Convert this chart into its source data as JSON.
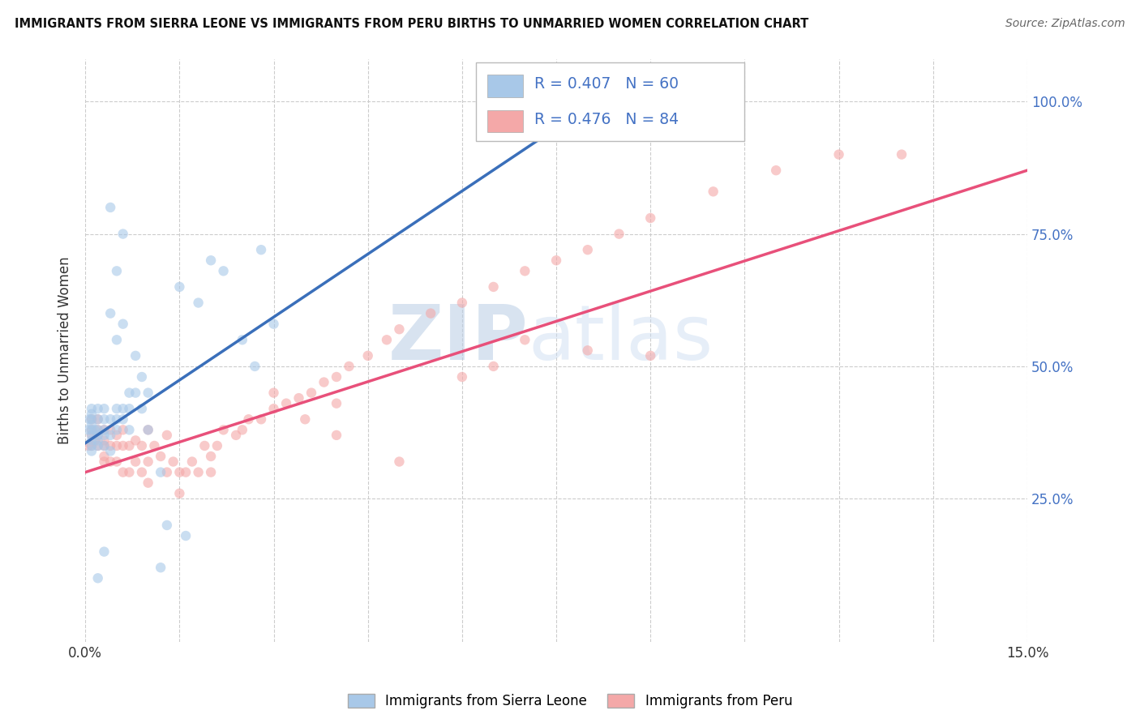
{
  "title": "IMMIGRANTS FROM SIERRA LEONE VS IMMIGRANTS FROM PERU BIRTHS TO UNMARRIED WOMEN CORRELATION CHART",
  "source": "Source: ZipAtlas.com",
  "ylabel": "Births to Unmarried Women",
  "xlim": [
    0.0,
    0.15
  ],
  "ylim": [
    -0.02,
    1.08
  ],
  "color_sierra_leone": "#a8c8e8",
  "color_peru": "#f4a8a8",
  "color_trend_sierra_leone": "#3a6fba",
  "color_trend_peru": "#e8507a",
  "watermark_zip": "ZIP",
  "watermark_atlas": "atlas",
  "background_color": "#ffffff",
  "grid_color": "#cccccc",
  "legend_R_color": "#4472c4",
  "legend_N_color": "#4472c4",
  "ytick_color": "#4472c4",
  "sl_x": [
    0.0005,
    0.0007,
    0.001,
    0.001,
    0.001,
    0.001,
    0.001,
    0.001,
    0.001,
    0.001,
    0.001,
    0.0015,
    0.002,
    0.002,
    0.002,
    0.002,
    0.002,
    0.002,
    0.003,
    0.003,
    0.003,
    0.003,
    0.003,
    0.004,
    0.004,
    0.004,
    0.004,
    0.005,
    0.005,
    0.005,
    0.005,
    0.006,
    0.006,
    0.006,
    0.007,
    0.007,
    0.007,
    0.008,
    0.008,
    0.009,
    0.009,
    0.01,
    0.01,
    0.012,
    0.012,
    0.013,
    0.015,
    0.016,
    0.018,
    0.02,
    0.022,
    0.025,
    0.027,
    0.028,
    0.03,
    0.004,
    0.005,
    0.006,
    0.003,
    0.002
  ],
  "sl_y": [
    0.38,
    0.4,
    0.36,
    0.38,
    0.4,
    0.41,
    0.42,
    0.35,
    0.37,
    0.39,
    0.34,
    0.38,
    0.38,
    0.4,
    0.42,
    0.36,
    0.37,
    0.35,
    0.38,
    0.4,
    0.42,
    0.35,
    0.37,
    0.34,
    0.37,
    0.4,
    0.6,
    0.38,
    0.4,
    0.42,
    0.55,
    0.4,
    0.42,
    0.58,
    0.38,
    0.42,
    0.45,
    0.45,
    0.52,
    0.42,
    0.48,
    0.38,
    0.45,
    0.3,
    0.12,
    0.2,
    0.65,
    0.18,
    0.62,
    0.7,
    0.68,
    0.55,
    0.5,
    0.72,
    0.58,
    0.8,
    0.68,
    0.75,
    0.15,
    0.1
  ],
  "peru_x": [
    0.0005,
    0.001,
    0.001,
    0.001,
    0.001,
    0.0015,
    0.002,
    0.002,
    0.002,
    0.002,
    0.003,
    0.003,
    0.003,
    0.003,
    0.003,
    0.004,
    0.004,
    0.004,
    0.005,
    0.005,
    0.005,
    0.006,
    0.006,
    0.006,
    0.007,
    0.007,
    0.008,
    0.008,
    0.009,
    0.009,
    0.01,
    0.01,
    0.011,
    0.012,
    0.013,
    0.013,
    0.014,
    0.015,
    0.016,
    0.017,
    0.018,
    0.019,
    0.02,
    0.021,
    0.022,
    0.024,
    0.026,
    0.028,
    0.03,
    0.032,
    0.034,
    0.036,
    0.038,
    0.04,
    0.042,
    0.045,
    0.048,
    0.05,
    0.055,
    0.06,
    0.065,
    0.07,
    0.075,
    0.08,
    0.085,
    0.09,
    0.1,
    0.11,
    0.12,
    0.13,
    0.03,
    0.025,
    0.02,
    0.015,
    0.01,
    0.035,
    0.04,
    0.05,
    0.06,
    0.07,
    0.08,
    0.09,
    0.04,
    0.065
  ],
  "peru_y": [
    0.35,
    0.35,
    0.37,
    0.38,
    0.4,
    0.36,
    0.35,
    0.37,
    0.38,
    0.4,
    0.33,
    0.35,
    0.36,
    0.38,
    0.32,
    0.32,
    0.35,
    0.38,
    0.32,
    0.35,
    0.37,
    0.3,
    0.35,
    0.38,
    0.3,
    0.35,
    0.32,
    0.36,
    0.3,
    0.35,
    0.32,
    0.38,
    0.35,
    0.33,
    0.3,
    0.37,
    0.32,
    0.3,
    0.3,
    0.32,
    0.3,
    0.35,
    0.33,
    0.35,
    0.38,
    0.37,
    0.4,
    0.4,
    0.42,
    0.43,
    0.44,
    0.45,
    0.47,
    0.48,
    0.5,
    0.52,
    0.55,
    0.57,
    0.6,
    0.62,
    0.65,
    0.68,
    0.7,
    0.72,
    0.75,
    0.78,
    0.83,
    0.87,
    0.9,
    0.9,
    0.45,
    0.38,
    0.3,
    0.26,
    0.28,
    0.4,
    0.37,
    0.32,
    0.48,
    0.55,
    0.53,
    0.52,
    0.43,
    0.5
  ],
  "sl_trend_x0": 0.0,
  "sl_trend_x1": 0.075,
  "sl_trend_y0": 0.355,
  "sl_trend_y1": 0.95,
  "peru_trend_x0": 0.0,
  "peru_trend_x1": 0.15,
  "peru_trend_y0": 0.3,
  "peru_trend_y1": 0.87
}
